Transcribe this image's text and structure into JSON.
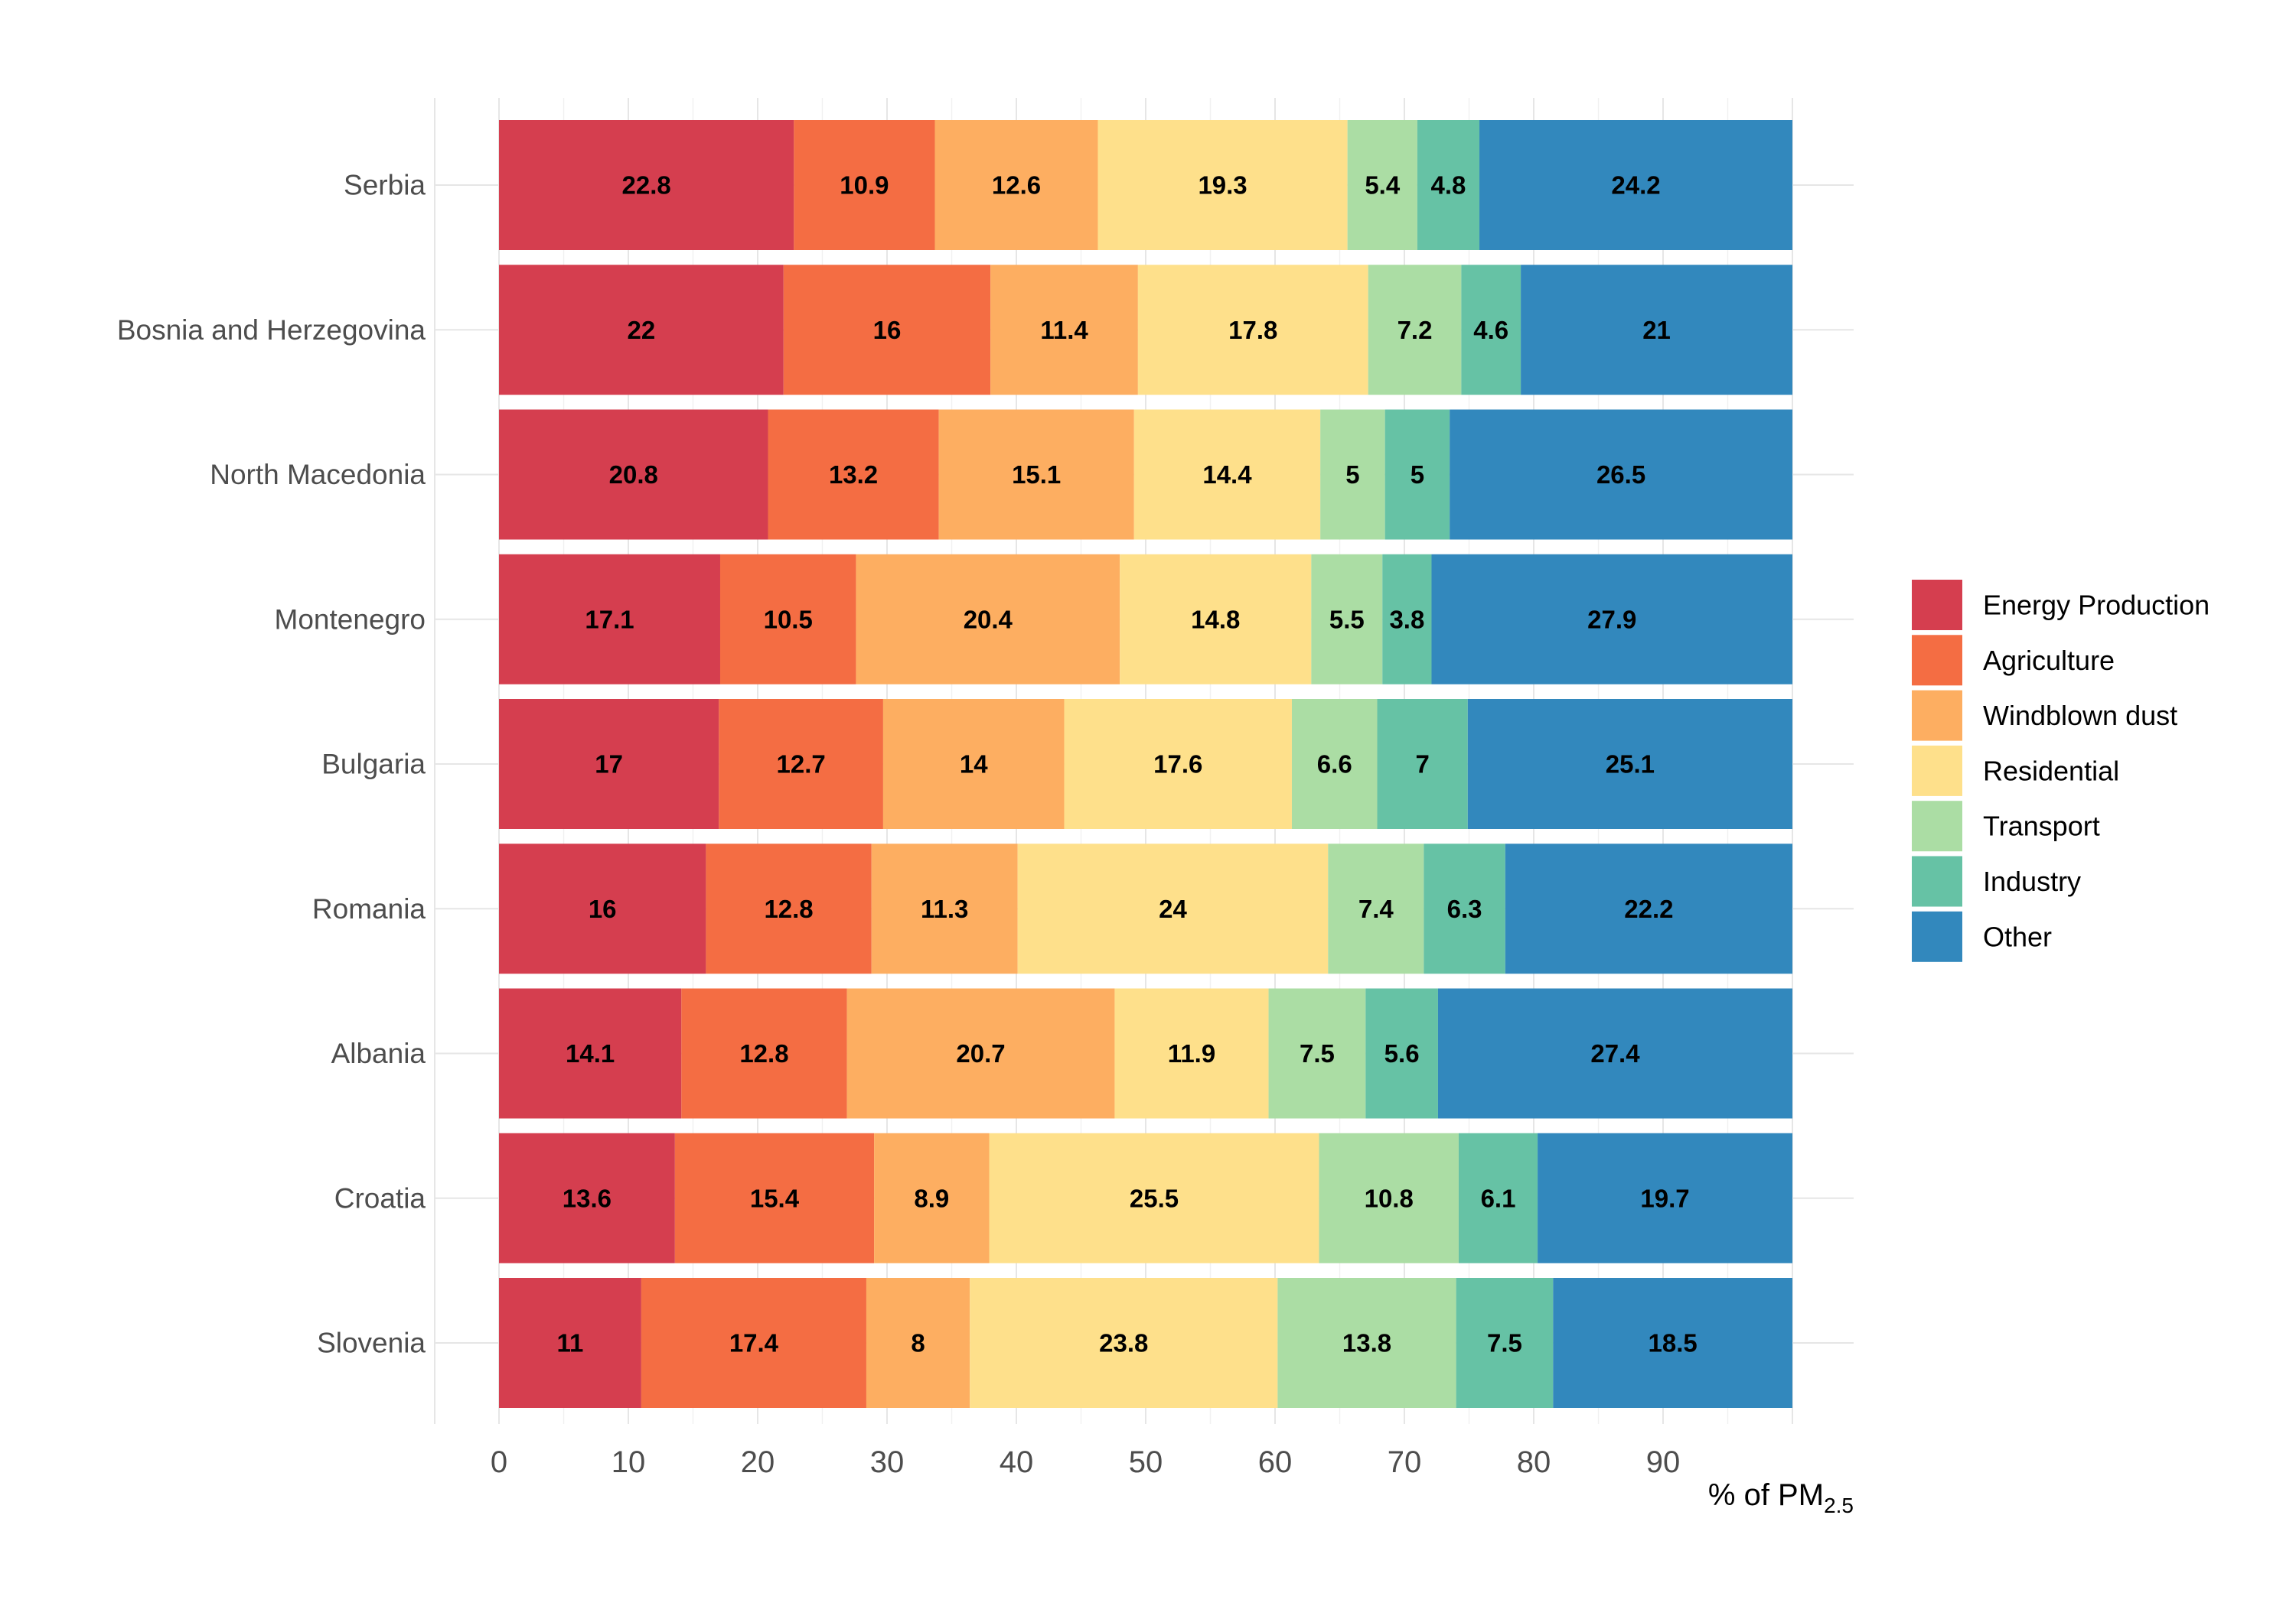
{
  "chart_data": {
    "type": "bar",
    "orientation": "horizontal",
    "stacked": true,
    "xlabel": {
      "main": "% of PM",
      "subscript": "2.5"
    },
    "xlim": [
      0,
      100
    ],
    "xticks": [
      0,
      10,
      20,
      30,
      40,
      50,
      60,
      70,
      80,
      90
    ],
    "grid": true,
    "legend_position": "right",
    "categories": [
      "Serbia",
      "Bosnia and Herzegovina",
      "North Macedonia",
      "Montenegro",
      "Bulgaria",
      "Romania",
      "Albania",
      "Croatia",
      "Slovenia"
    ],
    "series": [
      {
        "name": "Energy Production",
        "color": "#d53e4f",
        "values": [
          22.8,
          22,
          20.8,
          17.1,
          17,
          16,
          14.1,
          13.6,
          11
        ]
      },
      {
        "name": "Agriculture",
        "color": "#f46d43",
        "values": [
          10.9,
          16,
          13.2,
          10.5,
          12.7,
          12.8,
          12.8,
          15.4,
          17.4
        ]
      },
      {
        "name": "Windblown dust",
        "color": "#fdae61",
        "values": [
          12.6,
          11.4,
          15.1,
          20.4,
          14,
          11.3,
          20.7,
          8.9,
          8
        ]
      },
      {
        "name": "Residential",
        "color": "#fee08b",
        "values": [
          19.3,
          17.8,
          14.4,
          14.8,
          17.6,
          24,
          11.9,
          25.5,
          23.8
        ]
      },
      {
        "name": "Transport",
        "color": "#abdda4",
        "values": [
          5.4,
          7.2,
          5,
          5.5,
          6.6,
          7.4,
          7.5,
          10.8,
          13.8
        ]
      },
      {
        "name": "Industry",
        "color": "#66c2a5",
        "values": [
          4.8,
          4.6,
          5,
          3.8,
          7,
          6.3,
          5.6,
          6.1,
          7.5
        ]
      },
      {
        "name": "Other",
        "color": "#3288bd",
        "values": [
          24.2,
          21,
          26.5,
          27.9,
          25.1,
          22.2,
          27.4,
          19.7,
          18.5
        ]
      }
    ]
  }
}
